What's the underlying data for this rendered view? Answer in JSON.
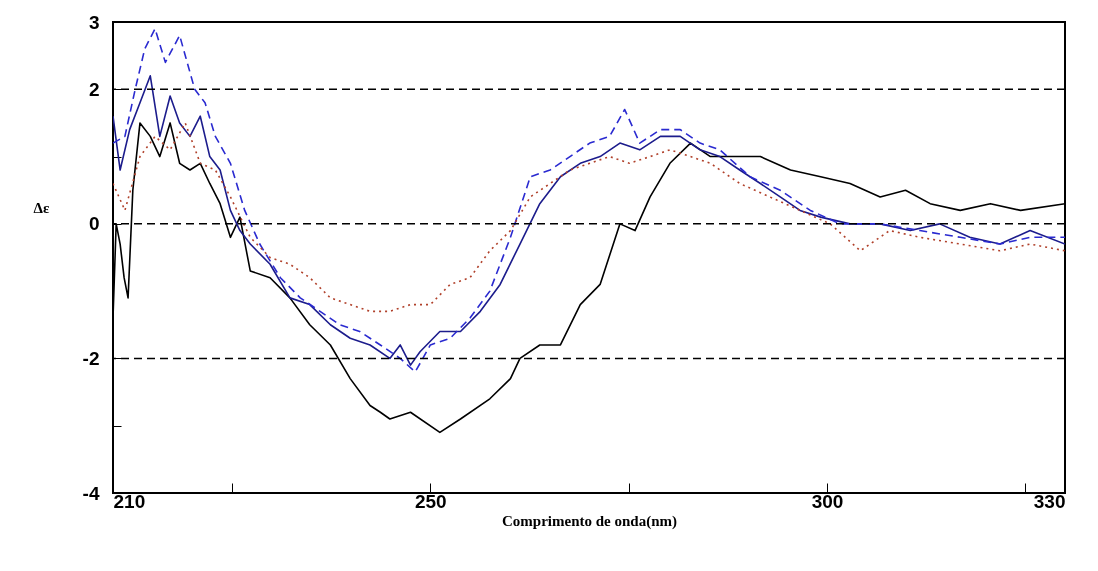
{
  "chart_data": {
    "type": "line",
    "xlabel": "Comprimento de onda(nm)",
    "ylabel": "Δε",
    "xlim": [
      210,
      330
    ],
    "xticks": [
      210,
      {
        "value": 225,
        "label": null
      },
      250,
      {
        "value": 275,
        "label": null
      },
      300,
      {
        "value": 325,
        "label": null
      },
      330
    ],
    "ylim": [
      -4,
      3
    ],
    "yticks": [
      -4,
      {
        "value": -3,
        "label": null
      },
      -2,
      0,
      {
        "value": 1,
        "label": null
      },
      2,
      3
    ],
    "grid": false,
    "ref_lines": [
      {
        "axis": "y",
        "value": 2,
        "label": null,
        "color": "#000000",
        "line_style": "dashed"
      },
      {
        "axis": "y",
        "value": 0,
        "label": null,
        "color": "#000000",
        "line_style": "dashed"
      },
      {
        "axis": "y",
        "value": -2,
        "label": null,
        "color": "#000000",
        "line_style": "dashed"
      }
    ],
    "series": [
      {
        "color": "#000000",
        "line_style": "solid",
        "x": [
          210,
          210.4,
          210.9,
          211.4,
          211.9,
          212.5,
          213.4,
          214.7,
          215.9,
          217.2,
          218.4,
          219.7,
          221.0,
          222.2,
          223.5,
          224.8,
          226.0,
          227.3,
          229.8,
          232.3,
          234.8,
          237.4,
          239.9,
          242.4,
          243.7,
          244.9,
          247.5,
          251.2,
          253.8,
          257.5,
          260.1,
          261.3,
          263.8,
          266.4,
          268.9,
          271.4,
          273.9,
          275.8,
          277.7,
          280.2,
          282.8,
          285.3,
          287.8,
          291.6,
          295.4,
          299.2,
          302.9,
          306.7,
          309.9,
          313.0,
          316.8,
          320.6,
          324.4,
          330
        ],
        "values": [
          -1.4,
          0.0,
          -0.3,
          -0.8,
          -1.1,
          0.5,
          1.5,
          1.3,
          1.0,
          1.5,
          0.9,
          0.8,
          0.9,
          0.6,
          0.3,
          -0.2,
          0.1,
          -0.7,
          -0.8,
          -1.1,
          -1.5,
          -1.8,
          -2.3,
          -2.7,
          -2.8,
          -2.9,
          -2.8,
          -3.1,
          -2.9,
          -2.6,
          -2.3,
          -2.0,
          -1.8,
          -1.8,
          -1.2,
          -0.9,
          0.0,
          -0.1,
          0.4,
          0.9,
          1.2,
          1.0,
          1.0,
          1.0,
          0.8,
          0.7,
          0.6,
          0.4,
          0.5,
          0.3,
          0.2,
          0.3,
          0.2,
          0.3
        ]
      },
      {
        "color": "#1c1c8c",
        "line_style": "solid",
        "x": [
          210,
          210.9,
          212.1,
          213.4,
          214.7,
          215.9,
          217.2,
          218.4,
          219.7,
          221.0,
          222.2,
          223.5,
          224.8,
          226.0,
          227.3,
          229.8,
          232.3,
          234.8,
          237.4,
          239.9,
          242.4,
          244.9,
          246.2,
          247.5,
          248.7,
          251.2,
          253.8,
          256.3,
          258.8,
          261.3,
          263.8,
          266.4,
          268.9,
          271.4,
          273.9,
          276.4,
          279.0,
          281.5,
          284.0,
          286.5,
          289.0,
          291.6,
          294.1,
          296.6,
          299.2,
          302.9,
          306.7,
          310.5,
          314.2,
          318.0,
          321.8,
          325.6,
          330
        ],
        "values": [
          1.6,
          0.8,
          1.4,
          1.8,
          2.2,
          1.3,
          1.9,
          1.5,
          1.3,
          1.6,
          1.0,
          0.8,
          0.2,
          -0.1,
          -0.3,
          -0.6,
          -1.1,
          -1.2,
          -1.5,
          -1.7,
          -1.8,
          -2.0,
          -1.8,
          -2.1,
          -1.9,
          -1.6,
          -1.6,
          -1.3,
          -0.9,
          -0.3,
          0.3,
          0.7,
          0.9,
          1.0,
          1.2,
          1.1,
          1.3,
          1.3,
          1.1,
          1.0,
          0.8,
          0.6,
          0.4,
          0.2,
          0.1,
          0.0,
          0.0,
          -0.1,
          0.0,
          -0.2,
          -0.3,
          -0.1,
          -0.3
        ]
      },
      {
        "color": "#2a2ad0",
        "line_style": "dashed",
        "x": [
          210,
          211.5,
          212.8,
          214.0,
          215.3,
          216.6,
          218.4,
          220.3,
          221.6,
          222.9,
          224.8,
          226.6,
          228.5,
          231.1,
          233.6,
          236.1,
          238.6,
          241.1,
          243.7,
          246.2,
          248.1,
          250.0,
          252.5,
          255.0,
          257.5,
          260.1,
          262.6,
          265.1,
          267.6,
          270.1,
          272.6,
          274.5,
          276.4,
          279.0,
          281.5,
          284.0,
          286.5,
          290.3,
          294.1,
          297.9,
          301.6,
          306.7,
          311.7,
          316.8,
          321.8,
          325.6,
          330
        ],
        "values": [
          1.2,
          1.3,
          2.0,
          2.6,
          2.9,
          2.4,
          2.8,
          2.0,
          1.8,
          1.3,
          0.9,
          0.2,
          -0.3,
          -0.8,
          -1.1,
          -1.3,
          -1.5,
          -1.6,
          -1.8,
          -2.0,
          -2.2,
          -1.8,
          -1.7,
          -1.4,
          -1.0,
          -0.2,
          0.7,
          0.8,
          1.0,
          1.2,
          1.3,
          1.7,
          1.2,
          1.4,
          1.4,
          1.2,
          1.1,
          0.7,
          0.5,
          0.2,
          0.0,
          0.0,
          -0.1,
          -0.2,
          -0.3,
          -0.2,
          -0.2
        ]
      },
      {
        "color": "#b0402a",
        "line_style": "dotted",
        "x": [
          210,
          211.5,
          213.4,
          215.3,
          217.2,
          219.1,
          221.0,
          222.9,
          224.8,
          227.3,
          229.8,
          232.3,
          234.8,
          237.4,
          239.9,
          242.4,
          244.9,
          247.5,
          250.0,
          252.5,
          255.0,
          257.5,
          260.1,
          262.6,
          265.1,
          267.6,
          270.1,
          272.6,
          275.1,
          277.7,
          280.2,
          282.8,
          285.3,
          289.0,
          292.8,
          296.6,
          300.4,
          304.2,
          307.9,
          311.7,
          316.8,
          321.8,
          325.6,
          330
        ],
        "values": [
          0.6,
          0.2,
          1.0,
          1.3,
          1.1,
          1.5,
          0.9,
          0.8,
          0.4,
          -0.2,
          -0.5,
          -0.6,
          -0.8,
          -1.1,
          -1.2,
          -1.3,
          -1.3,
          -1.2,
          -1.2,
          -0.9,
          -0.8,
          -0.4,
          -0.1,
          0.4,
          0.6,
          0.8,
          0.9,
          1.0,
          0.9,
          1.0,
          1.1,
          1.0,
          0.9,
          0.6,
          0.4,
          0.2,
          0.0,
          -0.4,
          -0.1,
          -0.2,
          -0.3,
          -0.4,
          -0.3,
          -0.4
        ]
      }
    ]
  }
}
